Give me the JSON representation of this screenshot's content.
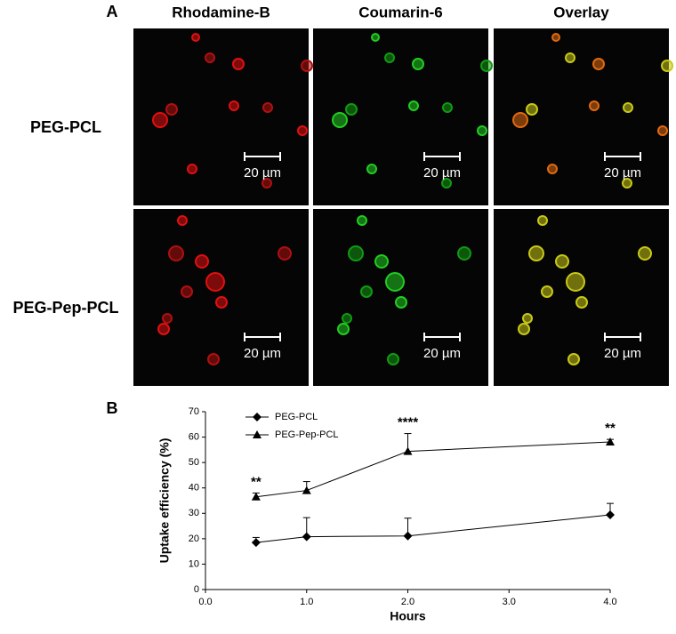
{
  "panel_a": {
    "label": "A",
    "columns": [
      "Rhodamine-B",
      "Coumarin-6",
      "Overlay"
    ],
    "rows": [
      "PEG-PCL",
      "PEG-Pep-PCL"
    ],
    "scale_bars": [
      "20 µm",
      "20 µm",
      "20 µm",
      "20 µm",
      "20 µm",
      "20 µm"
    ]
  },
  "chart_data": {
    "type": "line",
    "label": "B",
    "x": [
      0.5,
      1.0,
      2.0,
      4.0
    ],
    "series": [
      {
        "name": "PEG-PCL",
        "color": "#000000",
        "marker": "diamond",
        "values": [
          18.5,
          20.8,
          21.1,
          29.4
        ],
        "errors": [
          2.0,
          7.5,
          7.0,
          4.5
        ]
      },
      {
        "name": "PEG-Pep-PCL",
        "color": "#000000",
        "marker": "triangle",
        "values": [
          36.5,
          39.0,
          54.4,
          58.1
        ],
        "errors": [
          1.5,
          3.5,
          7.0,
          1.0
        ]
      }
    ],
    "annotations": [
      "**",
      null,
      "****",
      "**"
    ],
    "xlabel": "Hours",
    "ylabel": "Uptake efficiency (%)",
    "xlim": [
      0,
      4
    ],
    "ylim": [
      0,
      70
    ],
    "xticks": [
      {
        "value": 0,
        "label": "0.0"
      },
      {
        "value": 1,
        "label": "1.0"
      },
      {
        "value": 2,
        "label": "2.0"
      },
      {
        "value": 3,
        "label": "3.0"
      },
      {
        "value": 4,
        "label": "4.0"
      }
    ],
    "yticks": [
      0,
      10,
      20,
      30,
      40,
      50,
      60,
      70
    ],
    "legend": "upper left"
  }
}
